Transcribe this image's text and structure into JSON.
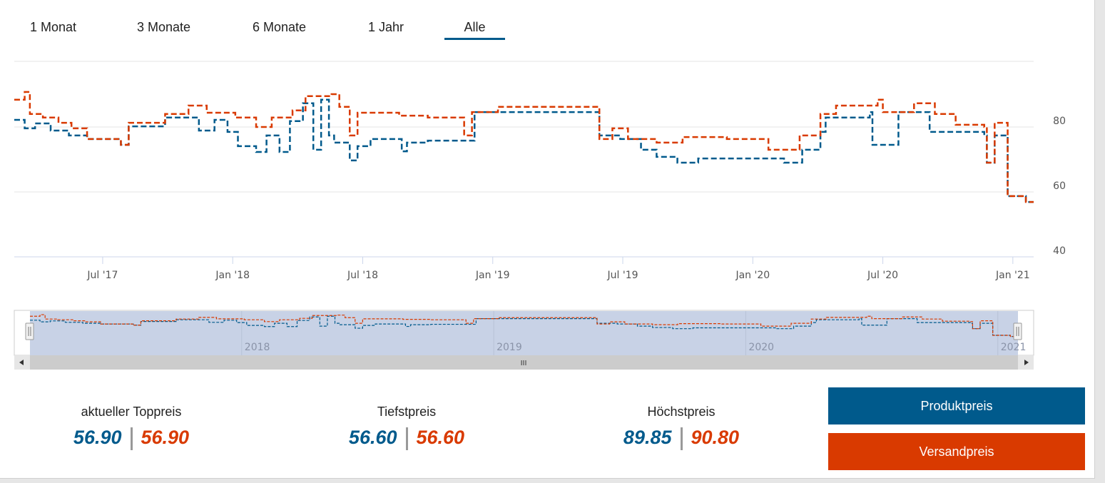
{
  "tabs": [
    {
      "label": "1 Monat"
    },
    {
      "label": "3 Monate"
    },
    {
      "label": "6 Monate"
    },
    {
      "label": "1 Jahr"
    },
    {
      "label": "Alle",
      "active": true
    }
  ],
  "colors": {
    "produkt": "#005a8c",
    "versand": "#d93a00"
  },
  "chart_data": {
    "type": "line",
    "step": true,
    "x_unit": "decimal year",
    "xlim": [
      2017.16,
      2021.08
    ],
    "ylim": [
      40,
      100
    ],
    "y_ticks": [
      "40",
      "60",
      "80"
    ],
    "x_ticks": [
      {
        "at": 2017.5,
        "label": "Jul '17"
      },
      {
        "at": 2018.0,
        "label": "Jan '18"
      },
      {
        "at": 2018.5,
        "label": "Jul '18"
      },
      {
        "at": 2019.0,
        "label": "Jan '19"
      },
      {
        "at": 2019.5,
        "label": "Jul '19"
      },
      {
        "at": 2020.0,
        "label": "Jan '20"
      },
      {
        "at": 2020.5,
        "label": "Jul '20"
      },
      {
        "at": 2021.0,
        "label": "Jan '21"
      }
    ],
    "navigator_ticks": [
      {
        "at": 2018,
        "label": "2018"
      },
      {
        "at": 2019,
        "label": "2019"
      },
      {
        "at": 2020,
        "label": "2020"
      },
      {
        "at": 2021,
        "label": "2021"
      }
    ],
    "grid": true,
    "series": [
      {
        "name": "Produktpreis",
        "color": "#005a8c",
        "points": [
          [
            2017.16,
            82.2
          ],
          [
            2017.2,
            79.6
          ],
          [
            2017.24,
            81.1
          ],
          [
            2017.3,
            78.9
          ],
          [
            2017.37,
            77.4
          ],
          [
            2017.44,
            76.3
          ],
          [
            2017.57,
            74.5
          ],
          [
            2017.6,
            80.2
          ],
          [
            2017.74,
            82.9
          ],
          [
            2017.87,
            78.9
          ],
          [
            2017.93,
            82.2
          ],
          [
            2017.98,
            78.5
          ],
          [
            2018.02,
            74.1
          ],
          [
            2018.09,
            72.3
          ],
          [
            2018.13,
            77.4
          ],
          [
            2018.18,
            72.3
          ],
          [
            2018.22,
            81.8
          ],
          [
            2018.27,
            87.3
          ],
          [
            2018.31,
            73.0
          ],
          [
            2018.34,
            88.4
          ],
          [
            2018.37,
            77.4
          ],
          [
            2018.39,
            75.2
          ],
          [
            2018.45,
            69.7
          ],
          [
            2018.48,
            74.1
          ],
          [
            2018.53,
            76.3
          ],
          [
            2018.65,
            72.5
          ],
          [
            2018.67,
            75.2
          ],
          [
            2018.75,
            75.8
          ],
          [
            2018.93,
            84.6
          ],
          [
            2019.38,
            84.6
          ],
          [
            2019.41,
            77.4
          ],
          [
            2019.49,
            76.3
          ],
          [
            2019.57,
            73.0
          ],
          [
            2019.63,
            70.8
          ],
          [
            2019.71,
            69.0
          ],
          [
            2019.79,
            70.3
          ],
          [
            2020.12,
            69.0
          ],
          [
            2020.19,
            73.0
          ],
          [
            2020.26,
            78.5
          ],
          [
            2020.28,
            82.9
          ],
          [
            2020.45,
            84.6
          ],
          [
            2020.46,
            74.5
          ],
          [
            2020.56,
            84.6
          ],
          [
            2020.68,
            78.5
          ],
          [
            2020.89,
            77.4
          ],
          [
            2020.9,
            69.0
          ],
          [
            2020.93,
            77.4
          ],
          [
            2020.98,
            58.7
          ],
          [
            2021.05,
            56.9
          ],
          [
            2021.08,
            56.9
          ]
        ]
      },
      {
        "name": "Versandpreis",
        "color": "#d93a00",
        "points": [
          [
            2017.16,
            88.4
          ],
          [
            2017.2,
            90.8
          ],
          [
            2017.22,
            84.0
          ],
          [
            2017.27,
            82.9
          ],
          [
            2017.33,
            81.3
          ],
          [
            2017.38,
            79.6
          ],
          [
            2017.44,
            76.3
          ],
          [
            2017.57,
            74.5
          ],
          [
            2017.6,
            81.3
          ],
          [
            2017.74,
            84.0
          ],
          [
            2017.83,
            86.6
          ],
          [
            2017.9,
            84.4
          ],
          [
            2018.01,
            82.9
          ],
          [
            2018.09,
            80.0
          ],
          [
            2018.15,
            82.9
          ],
          [
            2018.23,
            85.1
          ],
          [
            2018.28,
            89.5
          ],
          [
            2018.38,
            90.1
          ],
          [
            2018.41,
            86.2
          ],
          [
            2018.45,
            77.4
          ],
          [
            2018.48,
            84.4
          ],
          [
            2018.64,
            83.5
          ],
          [
            2018.75,
            82.9
          ],
          [
            2018.89,
            77.4
          ],
          [
            2018.92,
            84.6
          ],
          [
            2019.02,
            86.2
          ],
          [
            2019.38,
            86.2
          ],
          [
            2019.41,
            76.3
          ],
          [
            2019.46,
            79.6
          ],
          [
            2019.52,
            76.3
          ],
          [
            2019.63,
            75.2
          ],
          [
            2019.73,
            76.9
          ],
          [
            2019.9,
            76.3
          ],
          [
            2020.06,
            73.0
          ],
          [
            2020.18,
            77.4
          ],
          [
            2020.26,
            84.0
          ],
          [
            2020.32,
            86.6
          ],
          [
            2020.48,
            88.4
          ],
          [
            2020.5,
            84.6
          ],
          [
            2020.62,
            87.3
          ],
          [
            2020.7,
            84.0
          ],
          [
            2020.78,
            80.7
          ],
          [
            2020.89,
            80.0
          ],
          [
            2020.9,
            69.0
          ],
          [
            2020.93,
            81.3
          ],
          [
            2020.98,
            58.7
          ],
          [
            2021.05,
            56.9
          ],
          [
            2021.08,
            56.9
          ]
        ]
      }
    ]
  },
  "stats": [
    {
      "label": "aktueller Toppreis",
      "produkt": "56.90",
      "versand": "56.90"
    },
    {
      "label": "Tiefstpreis",
      "produkt": "56.60",
      "versand": "56.60"
    },
    {
      "label": "Höchstpreis",
      "produkt": "89.85",
      "versand": "90.80"
    }
  ],
  "buttons": {
    "produkt": "Produktpreis",
    "versand": "Versandpreis"
  },
  "navigator": {
    "scroll_grip": "III"
  }
}
